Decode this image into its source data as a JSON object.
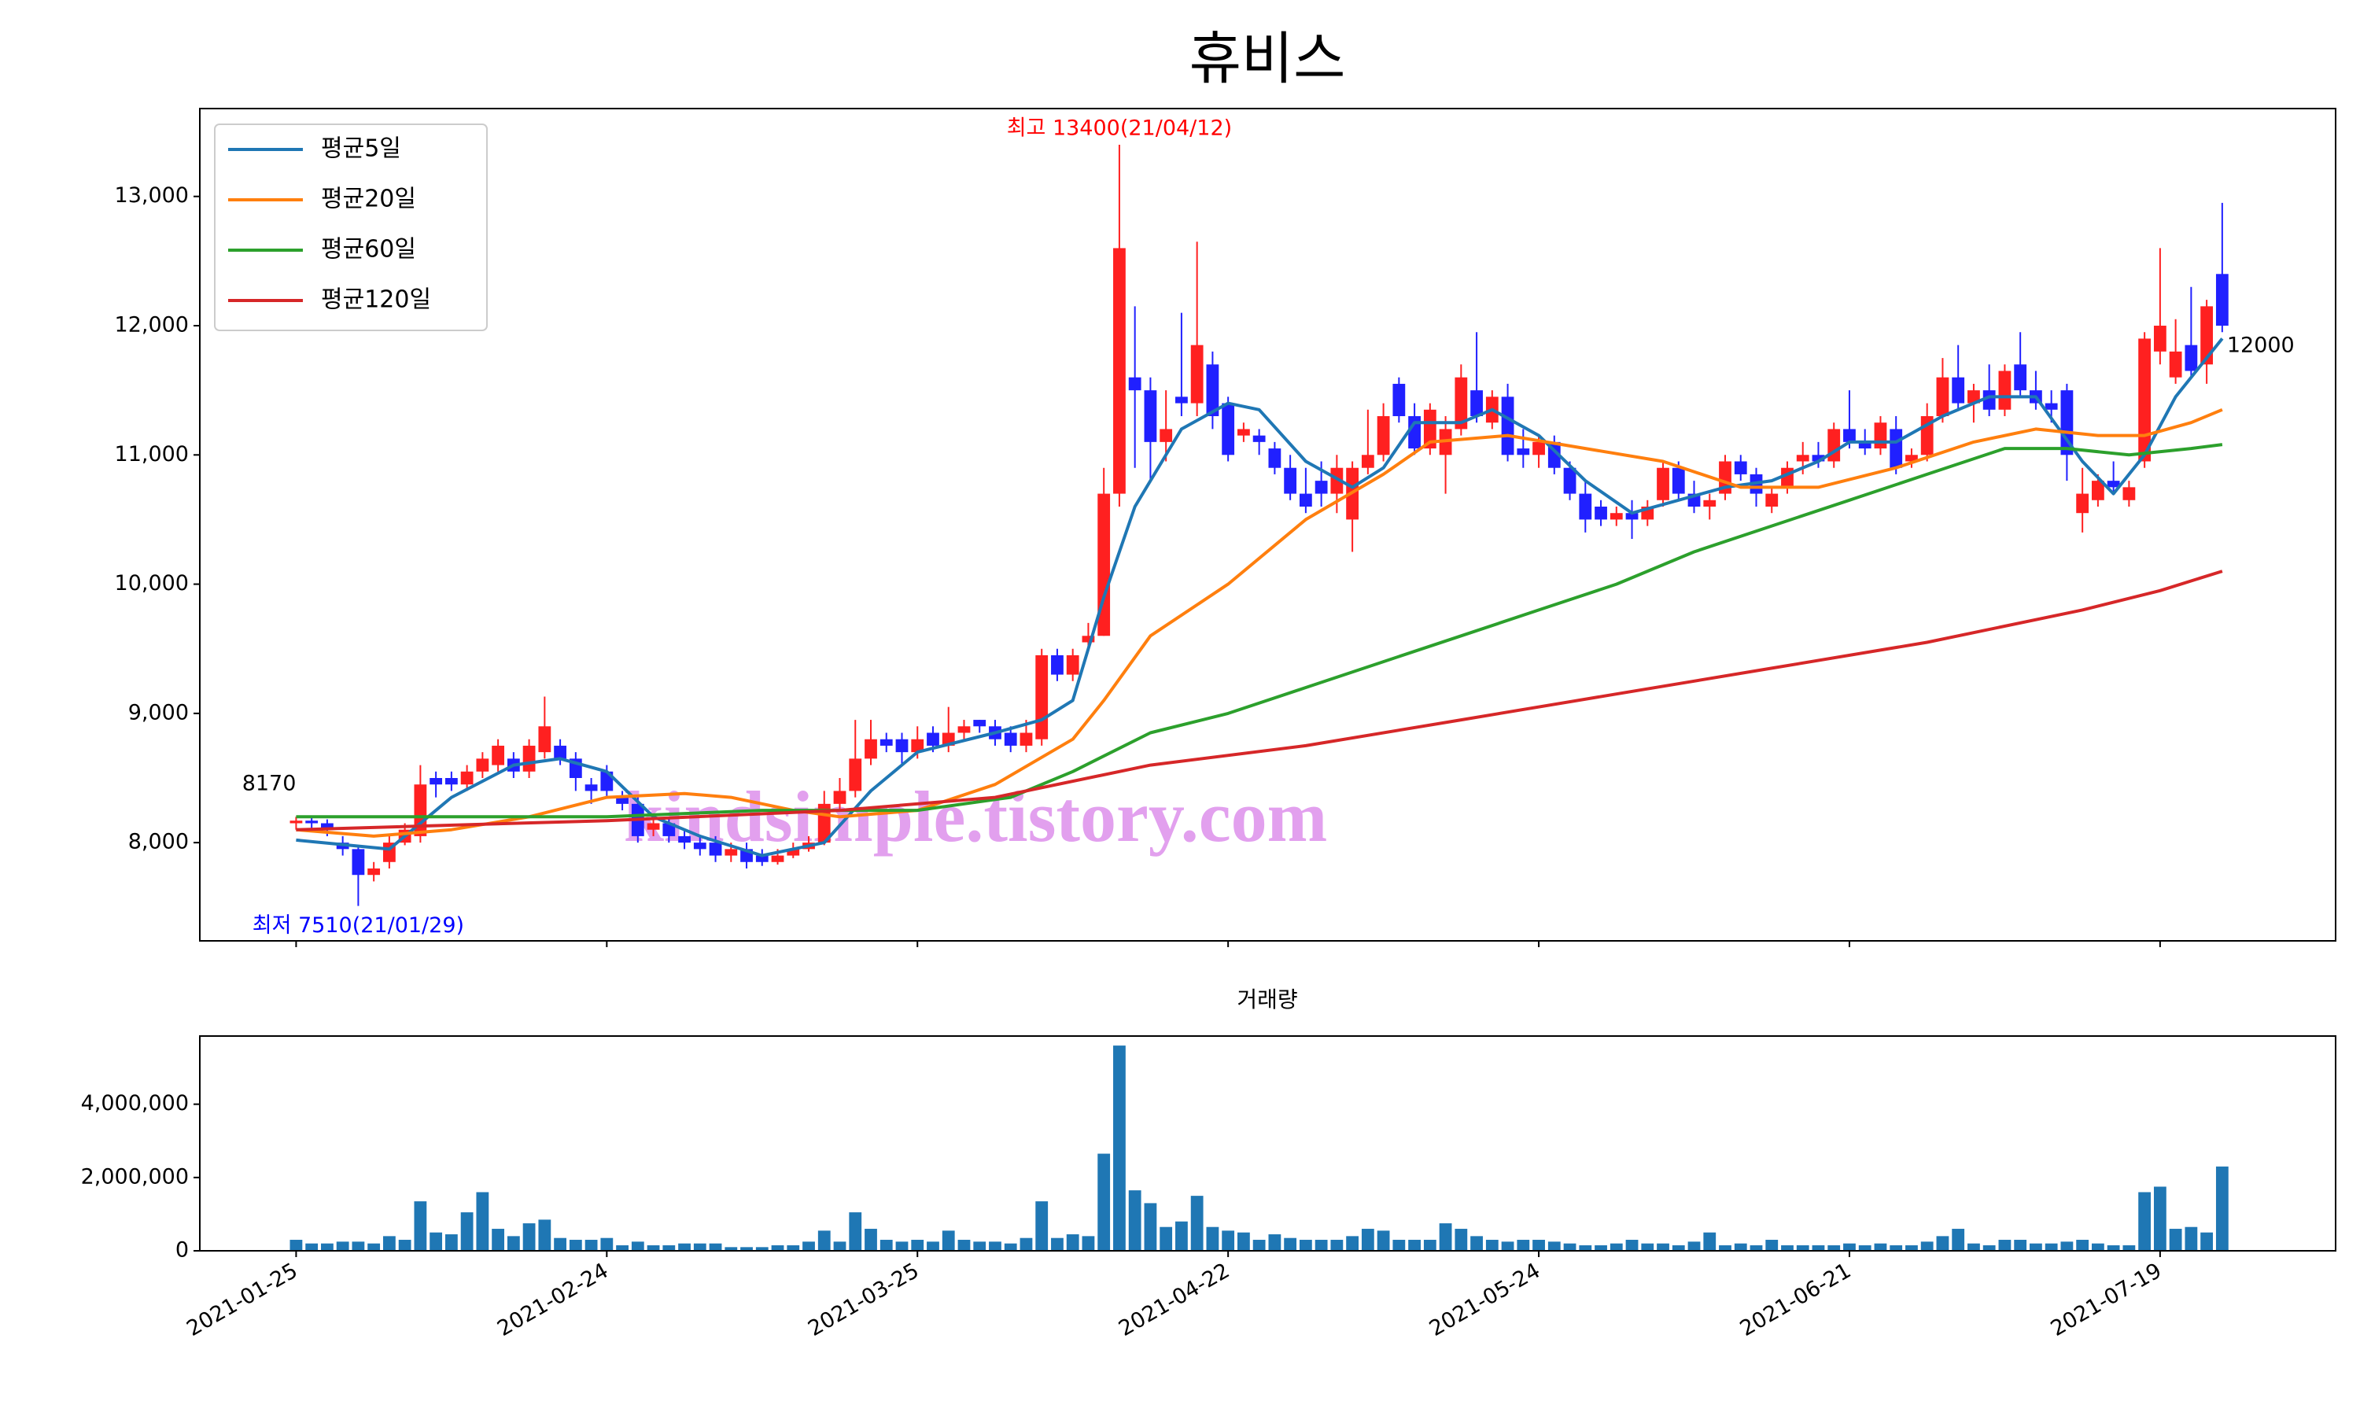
{
  "chart_data": [
    {
      "type": "candlestick",
      "title": "휴비스",
      "xlim": [
        -6.2,
        131.3
      ],
      "ylim": [
        7240,
        13680
      ],
      "yticks": [
        {
          "value": 8000,
          "label": "8,000"
        },
        {
          "value": 9000,
          "label": "9,000"
        },
        {
          "value": 10000,
          "label": "10,000"
        },
        {
          "value": 11000,
          "label": "11,000"
        },
        {
          "value": 12000,
          "label": "12,000"
        },
        {
          "value": 13000,
          "label": "13,000"
        }
      ],
      "up_color": "#ff2020",
      "down_color": "#2020ff",
      "candles": [
        [
          8150,
          8200,
          8100,
          8170
        ],
        [
          8170,
          8200,
          8100,
          8150
        ],
        [
          8150,
          8180,
          8050,
          8100
        ],
        [
          8000,
          8050,
          7900,
          7950
        ],
        [
          7950,
          7980,
          7510,
          7750
        ],
        [
          7750,
          7850,
          7700,
          7800
        ],
        [
          7850,
          8050,
          7800,
          8000
        ],
        [
          8000,
          8150,
          7980,
          8100
        ],
        [
          8050,
          8600,
          8000,
          8450
        ],
        [
          8500,
          8550,
          8350,
          8450
        ],
        [
          8500,
          8550,
          8400,
          8450
        ],
        [
          8450,
          8600,
          8400,
          8550
        ],
        [
          8550,
          8700,
          8500,
          8650
        ],
        [
          8600,
          8800,
          8550,
          8750
        ],
        [
          8650,
          8700,
          8500,
          8550
        ],
        [
          8550,
          8800,
          8500,
          8750
        ],
        [
          8700,
          9130,
          8650,
          8900
        ],
        [
          8750,
          8800,
          8600,
          8650
        ],
        [
          8650,
          8700,
          8400,
          8500
        ],
        [
          8450,
          8500,
          8300,
          8400
        ],
        [
          8550,
          8600,
          8350,
          8400
        ],
        [
          8350,
          8400,
          8250,
          8300
        ],
        [
          8300,
          8350,
          8000,
          8050
        ],
        [
          8100,
          8200,
          8050,
          8150
        ],
        [
          8150,
          8200,
          8000,
          8050
        ],
        [
          8050,
          8100,
          7950,
          8000
        ],
        [
          8000,
          8050,
          7900,
          7950
        ],
        [
          8000,
          8050,
          7850,
          7900
        ],
        [
          7900,
          8000,
          7850,
          7950
        ],
        [
          7950,
          8000,
          7800,
          7850
        ],
        [
          7900,
          7950,
          7820,
          7850
        ],
        [
          7850,
          7950,
          7830,
          7900
        ],
        [
          7900,
          8000,
          7880,
          7950
        ],
        [
          7950,
          8050,
          7930,
          8000
        ],
        [
          8000,
          8400,
          7980,
          8300
        ],
        [
          8300,
          8500,
          8250,
          8400
        ],
        [
          8400,
          8950,
          8350,
          8650
        ],
        [
          8650,
          8950,
          8600,
          8800
        ],
        [
          8800,
          8850,
          8700,
          8750
        ],
        [
          8800,
          8850,
          8600,
          8700
        ],
        [
          8700,
          8900,
          8650,
          8800
        ],
        [
          8850,
          8900,
          8700,
          8750
        ],
        [
          8750,
          9050,
          8700,
          8850
        ],
        [
          8850,
          8950,
          8800,
          8900
        ],
        [
          8950,
          8950,
          8850,
          8900
        ],
        [
          8900,
          8950,
          8750,
          8800
        ],
        [
          8850,
          8900,
          8700,
          8750
        ],
        [
          8750,
          8950,
          8700,
          8850
        ],
        [
          8800,
          9500,
          8750,
          9450
        ],
        [
          9450,
          9500,
          9250,
          9300
        ],
        [
          9300,
          9500,
          9250,
          9450
        ],
        [
          9550,
          9700,
          9500,
          9600
        ],
        [
          9600,
          10900,
          9600,
          10700
        ],
        [
          10700,
          13400,
          10600,
          12600
        ],
        [
          11600,
          12150,
          10900,
          11500
        ],
        [
          11500,
          11600,
          10800,
          11100
        ],
        [
          11100,
          11500,
          10950,
          11200
        ],
        [
          11450,
          12100,
          11300,
          11400
        ],
        [
          11400,
          12650,
          11300,
          11850
        ],
        [
          11700,
          11800,
          11200,
          11300
        ],
        [
          11400,
          11450,
          10950,
          11000
        ],
        [
          11150,
          11250,
          11100,
          11200
        ],
        [
          11150,
          11200,
          11000,
          11100
        ],
        [
          11050,
          11100,
          10850,
          10900
        ],
        [
          10900,
          11000,
          10650,
          10700
        ],
        [
          10700,
          10900,
          10550,
          10600
        ],
        [
          10800,
          10950,
          10600,
          10700
        ],
        [
          10700,
          11000,
          10550,
          10900
        ],
        [
          10500,
          10950,
          10250,
          10900
        ],
        [
          10900,
          11350,
          10850,
          11000
        ],
        [
          11000,
          11400,
          10950,
          11300
        ],
        [
          11550,
          11600,
          11250,
          11300
        ],
        [
          11300,
          11400,
          11000,
          11050
        ],
        [
          11050,
          11400,
          11000,
          11350
        ],
        [
          11000,
          11300,
          10700,
          11200
        ],
        [
          11200,
          11700,
          11150,
          11600
        ],
        [
          11500,
          11950,
          11250,
          11300
        ],
        [
          11250,
          11500,
          11200,
          11450
        ],
        [
          11450,
          11550,
          10950,
          11000
        ],
        [
          11050,
          11200,
          10900,
          11000
        ],
        [
          11000,
          11150,
          10900,
          11100
        ],
        [
          11100,
          11150,
          10850,
          10900
        ],
        [
          10900,
          10950,
          10650,
          10700
        ],
        [
          10700,
          10800,
          10400,
          10500
        ],
        [
          10600,
          10650,
          10450,
          10500
        ],
        [
          10500,
          10600,
          10450,
          10550
        ],
        [
          10550,
          10650,
          10350,
          10500
        ],
        [
          10500,
          10650,
          10450,
          10600
        ],
        [
          10650,
          10950,
          10600,
          10900
        ],
        [
          10900,
          10950,
          10650,
          10700
        ],
        [
          10700,
          10800,
          10550,
          10600
        ],
        [
          10600,
          10700,
          10500,
          10650
        ],
        [
          10700,
          11000,
          10650,
          10950
        ],
        [
          10950,
          11000,
          10800,
          10850
        ],
        [
          10850,
          10900,
          10600,
          10700
        ],
        [
          10600,
          10750,
          10550,
          10700
        ],
        [
          10750,
          10950,
          10700,
          10900
        ],
        [
          10950,
          11100,
          10850,
          11000
        ],
        [
          11000,
          11100,
          10900,
          10950
        ],
        [
          10950,
          11250,
          10900,
          11200
        ],
        [
          11200,
          11500,
          11050,
          11100
        ],
        [
          11100,
          11200,
          11000,
          11050
        ],
        [
          11050,
          11300,
          11000,
          11250
        ],
        [
          11200,
          11300,
          10850,
          10900
        ],
        [
          10950,
          11050,
          10900,
          11000
        ],
        [
          11000,
          11400,
          10950,
          11300
        ],
        [
          11300,
          11750,
          11250,
          11600
        ],
        [
          11600,
          11850,
          11350,
          11400
        ],
        [
          11400,
          11550,
          11250,
          11500
        ],
        [
          11500,
          11700,
          11300,
          11350
        ],
        [
          11350,
          11700,
          11300,
          11650
        ],
        [
          11700,
          11950,
          11450,
          11500
        ],
        [
          11500,
          11650,
          11350,
          11400
        ],
        [
          11400,
          11500,
          11250,
          11350
        ],
        [
          11500,
          11550,
          10800,
          11000
        ],
        [
          10550,
          10900,
          10400,
          10700
        ],
        [
          10650,
          10850,
          10600,
          10800
        ],
        [
          10800,
          10950,
          10700,
          10750
        ],
        [
          10650,
          10800,
          10600,
          10750
        ],
        [
          10950,
          11950,
          10900,
          11900
        ],
        [
          11800,
          12600,
          11700,
          12000
        ],
        [
          11600,
          12050,
          11550,
          11800
        ],
        [
          11850,
          12300,
          11600,
          11650
        ],
        [
          11700,
          12200,
          11550,
          12150
        ],
        [
          12400,
          12950,
          11950,
          12000
        ]
      ],
      "series": [
        {
          "name": "평균5일",
          "color": "#1f77b4",
          "x": [
            0,
            6,
            10,
            14,
            17,
            20,
            23,
            26,
            30,
            34,
            37,
            40,
            45,
            48,
            50,
            52,
            54,
            57,
            60,
            62,
            65,
            68,
            70,
            72,
            75,
            77,
            80,
            83,
            86,
            89,
            92,
            95,
            98,
            100,
            103,
            106,
            109,
            112,
            115,
            117,
            119,
            121,
            124
          ],
          "values": [
            8020,
            7950,
            8350,
            8600,
            8650,
            8550,
            8200,
            8050,
            7900,
            8000,
            8400,
            8700,
            8850,
            8950,
            9100,
            9900,
            10600,
            11200,
            11400,
            11350,
            10950,
            10750,
            10900,
            11250,
            11250,
            11350,
            11150,
            10800,
            10550,
            10650,
            10750,
            10800,
            10950,
            11100,
            11100,
            11300,
            11450,
            11450,
            10950,
            10700,
            11000,
            11450,
            11900
          ]
        },
        {
          "name": "평균20일",
          "color": "#ff7f0e",
          "x": [
            0,
            5,
            10,
            15,
            20,
            25,
            28,
            32,
            35,
            40,
            45,
            50,
            52,
            55,
            60,
            65,
            70,
            73,
            78,
            83,
            88,
            93,
            98,
            103,
            108,
            112,
            116,
            119,
            122,
            124
          ],
          "values": [
            8100,
            8050,
            8100,
            8200,
            8350,
            8380,
            8350,
            8250,
            8200,
            8250,
            8450,
            8800,
            9100,
            9600,
            10000,
            10500,
            10850,
            11100,
            11150,
            11050,
            10950,
            10750,
            10750,
            10900,
            11100,
            11200,
            11150,
            11150,
            11250,
            11350
          ]
        },
        {
          "name": "평균60일",
          "color": "#2ca02c",
          "x": [
            0,
            10,
            20,
            30,
            40,
            46,
            50,
            55,
            60,
            65,
            70,
            75,
            80,
            85,
            90,
            95,
            100,
            105,
            110,
            114,
            118,
            122,
            124
          ],
          "values": [
            8200,
            8200,
            8200,
            8250,
            8250,
            8350,
            8550,
            8850,
            9000,
            9200,
            9400,
            9600,
            9800,
            10000,
            10250,
            10450,
            10650,
            10850,
            11050,
            11050,
            11000,
            11050,
            11080
          ]
        },
        {
          "name": "평균120일",
          "color": "#d62728",
          "x": [
            0,
            20,
            35,
            45,
            55,
            65,
            75,
            85,
            95,
            105,
            115,
            120,
            124
          ],
          "values": [
            8100,
            8170,
            8250,
            8350,
            8600,
            8750,
            8950,
            9150,
            9350,
            9550,
            9800,
            9950,
            10100
          ]
        }
      ],
      "legend": "upper left",
      "high_label": "최고 13400(21/04/12)",
      "high_color": "#ff0000",
      "low_label": "최저 7510(21/01/29)",
      "low_color": "#0000ff",
      "first_label": "8170",
      "last_label": "12000",
      "watermark": "kindsimple.tistory.com",
      "watermark_color": "#e2a0ee"
    },
    {
      "type": "bar",
      "title": "거래량",
      "color": "#1f77b4",
      "ylim": [
        0,
        5860000
      ],
      "yticks": [
        0,
        {
          "value": 2000000,
          "label": "2,000,000"
        },
        {
          "value": 4000000,
          "label": "4,000,000"
        }
      ],
      "xticks": [
        {
          "value": 0,
          "label": "2021-01-25"
        },
        {
          "value": 20,
          "label": "2021-02-24"
        },
        {
          "value": 40,
          "label": "2021-03-25"
        },
        {
          "value": 60,
          "label": "2021-04-22"
        },
        {
          "value": 80,
          "label": "2021-05-24"
        },
        {
          "value": 100,
          "label": "2021-06-21"
        },
        {
          "value": 120,
          "label": "2021-07-19"
        }
      ],
      "values": [
        300000,
        200000,
        200000,
        250000,
        250000,
        200000,
        400000,
        300000,
        1350000,
        500000,
        450000,
        1050000,
        1600000,
        600000,
        400000,
        750000,
        850000,
        350000,
        300000,
        300000,
        350000,
        150000,
        250000,
        150000,
        150000,
        200000,
        200000,
        200000,
        100000,
        100000,
        100000,
        150000,
        150000,
        250000,
        550000,
        250000,
        1050000,
        600000,
        300000,
        250000,
        300000,
        250000,
        550000,
        300000,
        250000,
        250000,
        200000,
        350000,
        1350000,
        350000,
        450000,
        400000,
        2650000,
        5600000,
        1650000,
        1300000,
        650000,
        800000,
        1500000,
        650000,
        550000,
        500000,
        300000,
        450000,
        350000,
        300000,
        300000,
        300000,
        400000,
        600000,
        550000,
        300000,
        300000,
        300000,
        750000,
        600000,
        400000,
        300000,
        250000,
        300000,
        300000,
        250000,
        200000,
        150000,
        150000,
        200000,
        300000,
        200000,
        200000,
        150000,
        250000,
        500000,
        150000,
        200000,
        150000,
        300000,
        150000,
        150000,
        150000,
        150000,
        200000,
        150000,
        200000,
        150000,
        150000,
        250000,
        400000,
        600000,
        200000,
        150000,
        300000,
        300000,
        200000,
        200000,
        250000,
        300000,
        200000,
        150000,
        150000,
        1600000,
        1750000,
        600000,
        650000,
        500000,
        2300000
      ]
    }
  ]
}
